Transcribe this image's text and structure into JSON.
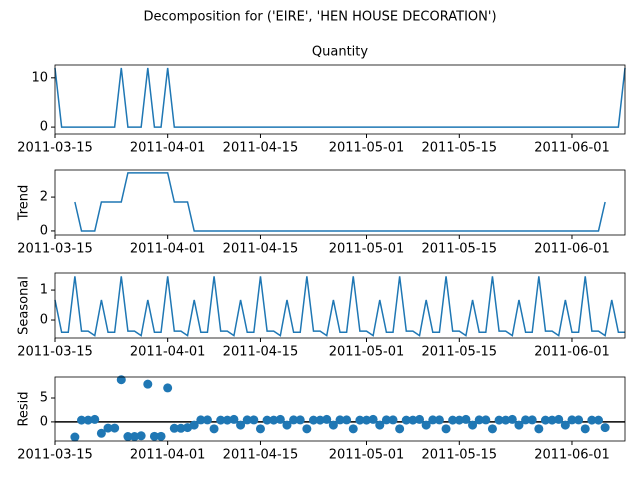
{
  "title": "Decomposition for ('EIRE', 'HEN HOUSE DECORATION')",
  "x": [
    "2011-03-15",
    "2011-03-16",
    "2011-03-17",
    "2011-03-18",
    "2011-03-19",
    "2011-03-20",
    "2011-03-21",
    "2011-03-22",
    "2011-03-23",
    "2011-03-24",
    "2011-03-25",
    "2011-03-26",
    "2011-03-27",
    "2011-03-28",
    "2011-03-29",
    "2011-03-30",
    "2011-03-31",
    "2011-04-01",
    "2011-04-02",
    "2011-04-03",
    "2011-04-04",
    "2011-04-05",
    "2011-04-06",
    "2011-04-07",
    "2011-04-08",
    "2011-04-09",
    "2011-04-10",
    "2011-04-11",
    "2011-04-12",
    "2011-04-13",
    "2011-04-14",
    "2011-04-15",
    "2011-04-16",
    "2011-04-17",
    "2011-04-18",
    "2011-04-19",
    "2011-04-20",
    "2011-04-21",
    "2011-04-22",
    "2011-04-23",
    "2011-04-24",
    "2011-04-25",
    "2011-04-26",
    "2011-04-27",
    "2011-04-28",
    "2011-04-29",
    "2011-04-30",
    "2011-05-01",
    "2011-05-02",
    "2011-05-03",
    "2011-05-04",
    "2011-05-05",
    "2011-05-06",
    "2011-05-07",
    "2011-05-08",
    "2011-05-09",
    "2011-05-10",
    "2011-05-11",
    "2011-05-12",
    "2011-05-13",
    "2011-05-14",
    "2011-05-15",
    "2011-05-16",
    "2011-05-17",
    "2011-05-18",
    "2011-05-19",
    "2011-05-20",
    "2011-05-21",
    "2011-05-22",
    "2011-05-23",
    "2011-05-24",
    "2011-05-25",
    "2011-05-26",
    "2011-05-27",
    "2011-05-28",
    "2011-05-29",
    "2011-05-30",
    "2011-05-31",
    "2011-06-01",
    "2011-06-02",
    "2011-06-03",
    "2011-06-04",
    "2011-06-05",
    "2011-06-06",
    "2011-06-07",
    "2011-06-08",
    "2011-06-09"
  ],
  "xlim": [
    "2011-03-15",
    "2011-06-09"
  ],
  "xticks": [
    "2011-03-15",
    "2011-04-01",
    "2011-04-15",
    "2011-05-01",
    "2011-05-15",
    "2011-06-01"
  ],
  "chart_data": [
    {
      "type": "line",
      "title": "Quantity",
      "color": "#1f77b4",
      "ylim": [
        -1.4,
        12.6
      ],
      "yticks": [
        0,
        10
      ],
      "values": [
        12,
        0,
        0,
        0,
        0,
        0,
        0,
        0,
        0,
        0,
        12,
        0,
        0,
        0,
        12,
        0,
        0,
        12,
        0,
        0,
        0,
        0,
        0,
        0,
        0,
        0,
        0,
        0,
        0,
        0,
        0,
        0,
        0,
        0,
        0,
        0,
        0,
        0,
        0,
        0,
        0,
        0,
        0,
        0,
        0,
        0,
        0,
        0,
        0,
        0,
        0,
        0,
        0,
        0,
        0,
        0,
        0,
        0,
        0,
        0,
        0,
        0,
        0,
        0,
        0,
        0,
        0,
        0,
        0,
        0,
        0,
        0,
        0,
        0,
        0,
        0,
        0,
        0,
        0,
        0,
        0,
        0,
        0,
        0,
        0,
        0,
        12
      ]
    },
    {
      "type": "line",
      "ylabel": "Trend",
      "color": "#1f77b4",
      "ylim": [
        -0.24,
        3.6
      ],
      "yticks": [
        0,
        2
      ],
      "values": [
        null,
        null,
        null,
        1.71,
        0,
        0,
        0,
        1.71,
        1.71,
        1.71,
        1.71,
        3.43,
        3.43,
        3.43,
        3.43,
        3.43,
        3.43,
        3.43,
        1.71,
        1.71,
        1.71,
        0,
        0,
        0,
        0,
        0,
        0,
        0,
        0,
        0,
        0,
        0,
        0,
        0,
        0,
        0,
        0,
        0,
        0,
        0,
        0,
        0,
        0,
        0,
        0,
        0,
        0,
        0,
        0,
        0,
        0,
        0,
        0,
        0,
        0,
        0,
        0,
        0,
        0,
        0,
        0,
        0,
        0,
        0,
        0,
        0,
        0,
        0,
        0,
        0,
        0,
        0,
        0,
        0,
        0,
        0,
        0,
        0,
        0,
        0,
        0,
        0,
        0,
        1.71,
        null,
        null,
        null
      ]
    },
    {
      "type": "line",
      "ylabel": "Seasonal",
      "color": "#1f77b4",
      "ylim": [
        -0.6,
        1.57
      ],
      "yticks": [
        0,
        1
      ],
      "values": [
        0.67,
        -0.41,
        -0.41,
        1.46,
        -0.37,
        -0.37,
        -0.52,
        0.67,
        -0.41,
        -0.41,
        1.46,
        -0.37,
        -0.37,
        -0.52,
        0.67,
        -0.41,
        -0.41,
        1.46,
        -0.37,
        -0.37,
        -0.52,
        0.67,
        -0.41,
        -0.41,
        1.46,
        -0.37,
        -0.37,
        -0.52,
        0.67,
        -0.41,
        -0.41,
        1.46,
        -0.37,
        -0.37,
        -0.52,
        0.67,
        -0.41,
        -0.41,
        1.46,
        -0.37,
        -0.37,
        -0.52,
        0.67,
        -0.41,
        -0.41,
        1.46,
        -0.37,
        -0.37,
        -0.52,
        0.67,
        -0.41,
        -0.41,
        1.46,
        -0.37,
        -0.37,
        -0.52,
        0.67,
        -0.41,
        -0.41,
        1.46,
        -0.37,
        -0.37,
        -0.52,
        0.67,
        -0.41,
        -0.41,
        1.46,
        -0.37,
        -0.37,
        -0.52,
        0.67,
        -0.41,
        -0.41,
        1.46,
        -0.37,
        -0.37,
        -0.52,
        0.67,
        -0.41,
        -0.41,
        1.46,
        -0.37,
        -0.37,
        -0.52,
        0.67,
        -0.41,
        -0.41
      ]
    },
    {
      "type": "scatter",
      "ylabel": "Resid",
      "color": "#1f77b4",
      "ylim": [
        -4,
        9.4
      ],
      "yticks": [
        0,
        5
      ],
      "hline": 0,
      "values": [
        null,
        null,
        null,
        -3.17,
        0.37,
        0.37,
        0.52,
        -2.38,
        -1.3,
        -1.3,
        8.83,
        -3.06,
        -3.06,
        -2.91,
        7.9,
        -3.02,
        -3.02,
        7.11,
        -1.34,
        -1.34,
        -1.19,
        -0.67,
        0.41,
        0.41,
        -1.46,
        0.37,
        0.37,
        0.52,
        -0.67,
        0.41,
        0.41,
        -1.46,
        0.37,
        0.37,
        0.52,
        -0.67,
        0.41,
        0.41,
        -1.46,
        0.37,
        0.37,
        0.52,
        -0.67,
        0.41,
        0.41,
        -1.46,
        0.37,
        0.37,
        0.52,
        -0.67,
        0.41,
        0.41,
        -1.46,
        0.37,
        0.37,
        0.52,
        -0.67,
        0.41,
        0.41,
        -1.46,
        0.37,
        0.37,
        0.52,
        -0.67,
        0.41,
        0.41,
        -1.46,
        0.37,
        0.37,
        0.52,
        -0.67,
        0.41,
        0.41,
        -1.46,
        0.37,
        0.37,
        0.52,
        -0.67,
        0.41,
        0.41,
        -1.46,
        0.37,
        0.37,
        -1.19,
        null,
        null,
        null
      ]
    }
  ]
}
